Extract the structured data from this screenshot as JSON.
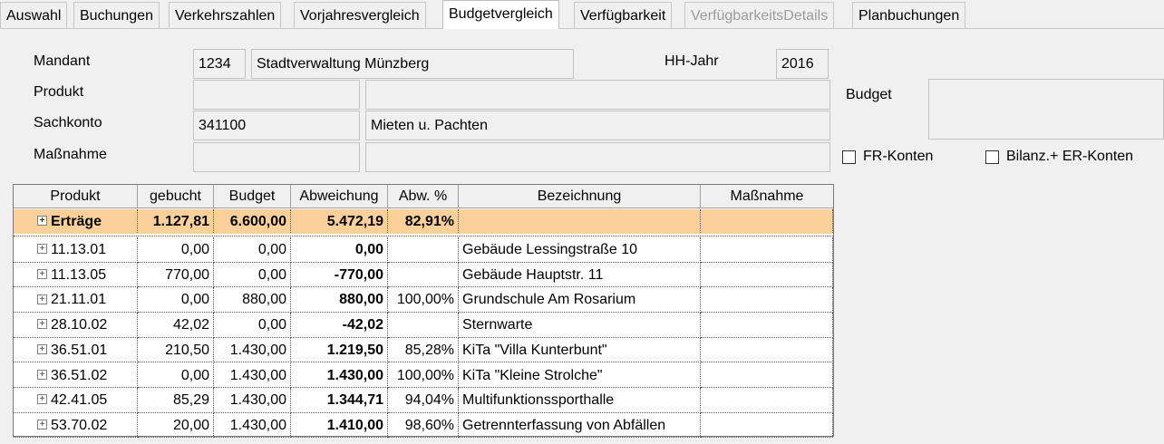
{
  "tabs": [
    {
      "label": "Auswahl",
      "state": "normal"
    },
    {
      "label": "Buchungen",
      "state": "normal"
    },
    {
      "label": "Verkehrszahlen",
      "state": "normal"
    },
    {
      "label": "Vorjahresvergleich",
      "state": "normal"
    },
    {
      "label": "Budgetvergleich",
      "state": "active"
    },
    {
      "label": "Verfügbarkeit",
      "state": "normal"
    },
    {
      "label": "VerfügbarkeitsDetails",
      "state": "disabled"
    },
    {
      "label": "Planbuchungen",
      "state": "normal"
    }
  ],
  "form": {
    "mandant_label": "Mandant",
    "mandant_nr": "1234",
    "mandant_name": "Stadtverwaltung Münzberg",
    "hhjahr_label": "HH-Jahr",
    "hhjahr_value": "2016",
    "produkt_label": "Produkt",
    "produkt_nr": "",
    "produkt_name": "",
    "budget_label": "Budget",
    "budget_value": "",
    "sachkonto_label": "Sachkonto",
    "sachkonto_nr": "341100",
    "sachkonto_name": "Mieten u. Pachten",
    "massnahme_label": "Maßnahme",
    "massnahme_nr": "",
    "massnahme_name": "",
    "fr_konten_label": "FR-Konten",
    "bilanz_label": "Bilanz.+ ER-Konten"
  },
  "grid": {
    "columns": [
      "Produkt",
      "gebucht",
      "Budget",
      "Abweichung",
      "Abw. %",
      "Bezeichnung",
      "Maßnahme"
    ],
    "summary": {
      "produkt": "Erträge",
      "gebucht": "1.127,81",
      "budget": "6.600,00",
      "abweichung": "5.472,19",
      "abw_pct": "82,91%",
      "bezeichnung": "",
      "massnahme": ""
    },
    "rows": [
      {
        "produkt": "11.13.01",
        "gebucht": "0,00",
        "budget": "0,00",
        "abweichung": "0,00",
        "abw_pct": "",
        "bezeichnung": "Gebäude Lessingstraße 10",
        "massnahme": ""
      },
      {
        "produkt": "11.13.05",
        "gebucht": "770,00",
        "budget": "0,00",
        "abweichung": "-770,00",
        "abw_pct": "",
        "bezeichnung": "Gebäude Hauptstr. 11",
        "massnahme": ""
      },
      {
        "produkt": "21.11.01",
        "gebucht": "0,00",
        "budget": "880,00",
        "abweichung": "880,00",
        "abw_pct": "100,00%",
        "bezeichnung": "Grundschule Am Rosarium",
        "massnahme": ""
      },
      {
        "produkt": "28.10.02",
        "gebucht": "42,02",
        "budget": "0,00",
        "abweichung": "-42,02",
        "abw_pct": "",
        "bezeichnung": "Sternwarte",
        "massnahme": ""
      },
      {
        "produkt": "36.51.01",
        "gebucht": "210,50",
        "budget": "1.430,00",
        "abweichung": "1.219,50",
        "abw_pct": "85,28%",
        "bezeichnung": "KiTa \"Villa Kunterbunt\"",
        "massnahme": ""
      },
      {
        "produkt": "36.51.02",
        "gebucht": "0,00",
        "budget": "1.430,00",
        "abweichung": "1.430,00",
        "abw_pct": "100,00%",
        "bezeichnung": "KiTa \"Kleine Strolche\"",
        "massnahme": ""
      },
      {
        "produkt": "42.41.05",
        "gebucht": "85,29",
        "budget": "1.430,00",
        "abweichung": "1.344,71",
        "abw_pct": "94,04%",
        "bezeichnung": "Multifunktionssporthalle",
        "massnahme": ""
      },
      {
        "produkt": "53.70.02",
        "gebucht": "20,00",
        "budget": "1.430,00",
        "abweichung": "1.410,00",
        "abw_pct": "98,60%",
        "bezeichnung": "Getrennterfassung von Abfällen",
        "massnahme": ""
      }
    ]
  },
  "colors": {
    "summary_row": "#fbd09a",
    "disabled_text": "#9b9b9b"
  },
  "icons": {
    "expand": "plus-box-icon"
  }
}
